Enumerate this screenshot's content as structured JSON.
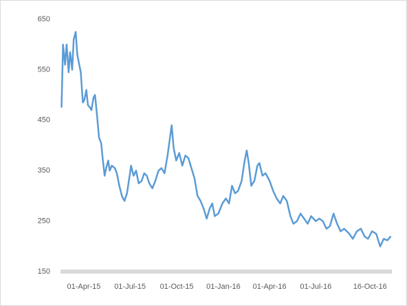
{
  "chart_data": {
    "type": "line",
    "x": [
      "2015-02-16",
      "2015-02-19",
      "2015-02-23",
      "2015-02-26",
      "2015-03-02",
      "2015-03-05",
      "2015-03-09",
      "2015-03-12",
      "2015-03-16",
      "2015-03-19",
      "2015-03-23",
      "2015-03-26",
      "2015-03-30",
      "2015-04-02",
      "2015-04-06",
      "2015-04-09",
      "2015-04-13",
      "2015-04-16",
      "2015-04-20",
      "2015-04-23",
      "2015-04-27",
      "2015-05-01",
      "2015-05-05",
      "2015-05-08",
      "2015-05-12",
      "2015-05-15",
      "2015-05-19",
      "2015-05-22",
      "2015-05-26",
      "2015-06-01",
      "2015-06-05",
      "2015-06-10",
      "2015-06-15",
      "2015-06-20",
      "2015-06-25",
      "2015-07-01",
      "2015-07-03",
      "2015-07-08",
      "2015-07-13",
      "2015-07-18",
      "2015-07-24",
      "2015-07-29",
      "2015-08-03",
      "2015-08-08",
      "2015-08-14",
      "2015-08-20",
      "2015-08-26",
      "2015-09-01",
      "2015-09-07",
      "2015-09-13",
      "2015-09-17",
      "2015-09-21",
      "2015-09-25",
      "2015-09-30",
      "2015-10-06",
      "2015-10-12",
      "2015-10-18",
      "2015-10-24",
      "2015-10-30",
      "2015-11-05",
      "2015-11-11",
      "2015-11-17",
      "2015-11-23",
      "2015-11-29",
      "2015-12-05",
      "2015-12-10",
      "2015-12-15",
      "2015-12-22",
      "2015-12-30",
      "2016-01-06",
      "2016-01-12",
      "2016-01-18",
      "2016-01-24",
      "2016-01-30",
      "2016-02-06",
      "2016-02-12",
      "2016-02-16",
      "2016-02-20",
      "2016-02-25",
      "2016-03-02",
      "2016-03-08",
      "2016-03-12",
      "2016-03-18",
      "2016-03-24",
      "2016-04-01",
      "2016-04-08",
      "2016-04-15",
      "2016-04-22",
      "2016-04-28",
      "2016-05-05",
      "2016-05-12",
      "2016-05-18",
      "2016-05-25",
      "2016-06-01",
      "2016-06-08",
      "2016-06-15",
      "2016-06-22",
      "2016-07-01",
      "2016-07-08",
      "2016-07-15",
      "2016-07-22",
      "2016-07-29",
      "2016-08-05",
      "2016-08-12",
      "2016-08-19",
      "2016-08-26",
      "2016-09-05",
      "2016-09-12",
      "2016-09-20",
      "2016-09-28",
      "2016-10-05",
      "2016-10-12",
      "2016-10-20",
      "2016-10-28",
      "2016-11-05",
      "2016-11-12",
      "2016-11-19",
      "2016-11-26"
    ],
    "series": [
      {
        "color": "#5b9bd5",
        "values": [
          475,
          600,
          560,
          600,
          545,
          585,
          550,
          610,
          625,
          580,
          560,
          545,
          485,
          490,
          510,
          480,
          475,
          470,
          495,
          500,
          460,
          415,
          405,
          375,
          340,
          355,
          370,
          350,
          360,
          355,
          345,
          320,
          300,
          290,
          305,
          345,
          360,
          340,
          350,
          325,
          330,
          345,
          340,
          325,
          315,
          330,
          350,
          355,
          345,
          380,
          410,
          440,
          395,
          370,
          385,
          360,
          380,
          375,
          355,
          335,
          300,
          290,
          275,
          255,
          275,
          285,
          260,
          265,
          285,
          295,
          285,
          320,
          305,
          310,
          330,
          370,
          390,
          365,
          320,
          330,
          360,
          365,
          340,
          345,
          330,
          310,
          295,
          285,
          300,
          290,
          260,
          245,
          250,
          265,
          255,
          245,
          260,
          250,
          255,
          250,
          235,
          240,
          265,
          245,
          230,
          235,
          225,
          215,
          230,
          235,
          220,
          215,
          230,
          225,
          200,
          215,
          212,
          220
        ]
      }
    ],
    "xlim": [
      "2015-02-14",
      "2016-11-28"
    ],
    "xticks": [
      {
        "value": "2015-04-01",
        "label": "01-Apr-15"
      },
      {
        "value": "2015-07-01",
        "label": "01-Jul-15"
      },
      {
        "value": "2015-10-01",
        "label": "01-Oct-15"
      },
      {
        "value": "2016-01-01",
        "label": "01-Jan-16"
      },
      {
        "value": "2016-04-01",
        "label": "01-Apr-16"
      },
      {
        "value": "2016-07-01",
        "label": "01-Jul-16"
      },
      {
        "value": "2016-10-16",
        "label": "16-Oct-16"
      }
    ],
    "ylim": [
      150,
      650
    ],
    "yticks": [
      150,
      250,
      350,
      450,
      550,
      650
    ],
    "grid": false
  }
}
